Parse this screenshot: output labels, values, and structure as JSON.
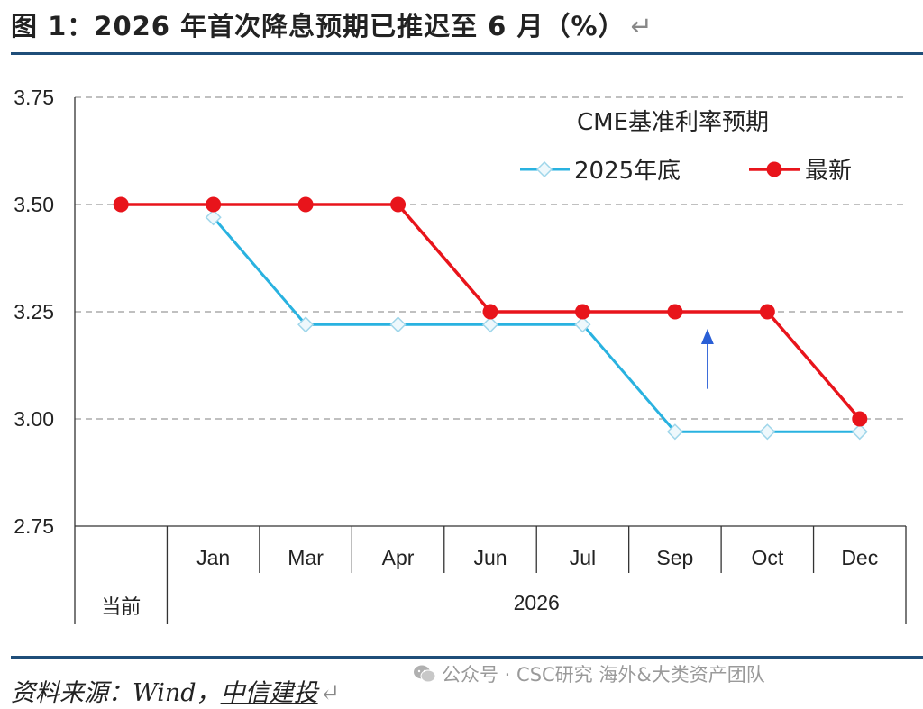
{
  "header": {
    "title": "图 1：2026 年首次降息预期已推迟至 6 月（%）",
    "return_mark": "↵"
  },
  "footer": {
    "source_prefix": "资料来源：Wind，",
    "source_brand": "中信建投",
    "return_mark": "↵",
    "watermark": "公众号 · CSC研究 海外&大类资产团队",
    "watermark_icon": "wechat-icon"
  },
  "colors": {
    "series_2025": "#29b2e0",
    "series_latest": "#e8141b",
    "arrow": "#2a5fd6",
    "rule": "#1f4e79"
  },
  "chart_data": {
    "type": "line",
    "legend_title": "CME基准利率预期",
    "legend_position": "top-right",
    "categories": [
      "当前",
      "Jan",
      "Mar",
      "Apr",
      "Jun",
      "Jul",
      "Sep",
      "Oct",
      "Dec"
    ],
    "group_label": "2026",
    "group_span": [
      "Jan",
      "Dec"
    ],
    "ylim": [
      2.75,
      3.75
    ],
    "yticks": [
      "3.75",
      "3.50",
      "3.25",
      "3.00",
      "2.75"
    ],
    "grid": true,
    "series": [
      {
        "name": "2025年底",
        "marker": "diamond-open",
        "values": [
          null,
          3.47,
          3.22,
          3.22,
          3.22,
          3.22,
          2.97,
          2.97,
          2.97
        ]
      },
      {
        "name": "最新",
        "marker": "circle-filled",
        "values": [
          3.5,
          3.5,
          3.5,
          3.5,
          3.25,
          3.25,
          3.25,
          3.25,
          3.0
        ]
      }
    ],
    "annotations": [
      {
        "type": "arrow",
        "direction": "up",
        "category": "Sep",
        "from": 3.07,
        "to": 3.21
      }
    ]
  }
}
